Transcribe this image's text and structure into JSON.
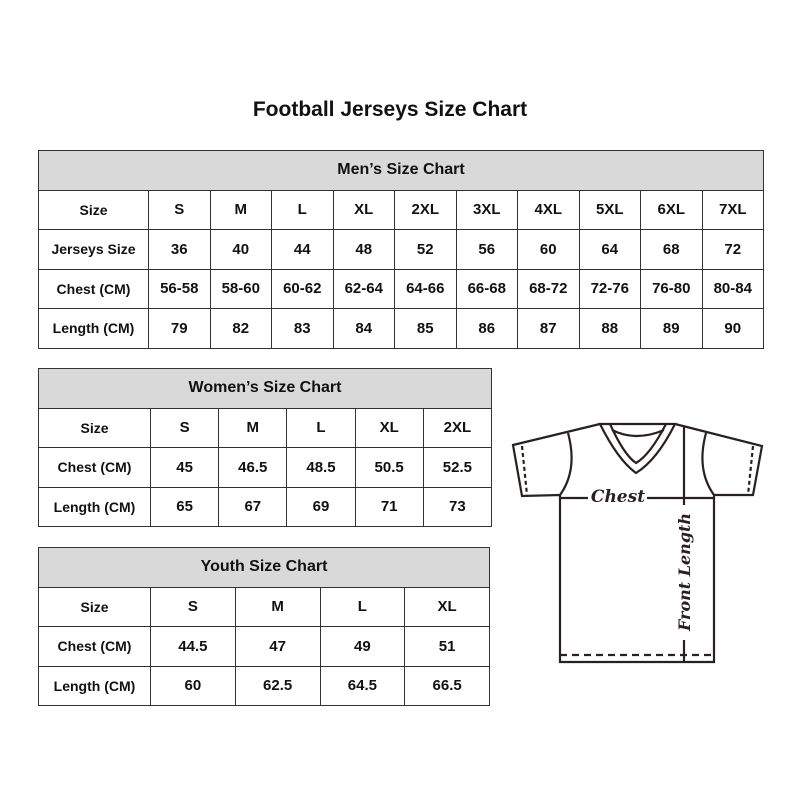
{
  "title": "Football Jerseys Size Chart",
  "men": {
    "caption": "Men’s Size Chart",
    "rows": [
      {
        "label": "Size",
        "values": [
          "S",
          "M",
          "L",
          "XL",
          "2XL",
          "3XL",
          "4XL",
          "5XL",
          "6XL",
          "7XL"
        ]
      },
      {
        "label": "Jerseys Size",
        "values": [
          "36",
          "40",
          "44",
          "48",
          "52",
          "56",
          "60",
          "64",
          "68",
          "72"
        ]
      },
      {
        "label": "Chest (CM)",
        "values": [
          "56-58",
          "58-60",
          "60-62",
          "62-64",
          "64-66",
          "66-68",
          "68-72",
          "72-76",
          "76-80",
          "80-84"
        ]
      },
      {
        "label": "Length (CM)",
        "values": [
          "79",
          "82",
          "83",
          "84",
          "85",
          "86",
          "87",
          "88",
          "89",
          "90"
        ]
      }
    ]
  },
  "women": {
    "caption": "Women’s Size Chart",
    "rows": [
      {
        "label": "Size",
        "values": [
          "S",
          "M",
          "L",
          "XL",
          "2XL"
        ]
      },
      {
        "label": "Chest (CM)",
        "values": [
          "45",
          "46.5",
          "48.5",
          "50.5",
          "52.5"
        ]
      },
      {
        "label": "Length (CM)",
        "values": [
          "65",
          "67",
          "69",
          "71",
          "73"
        ]
      }
    ]
  },
  "youth": {
    "caption": "Youth Size Chart",
    "rows": [
      {
        "label": "Size",
        "values": [
          "S",
          "M",
          "L",
          "XL"
        ]
      },
      {
        "label": "Chest (CM)",
        "values": [
          "44.5",
          "47",
          "49",
          "51"
        ]
      },
      {
        "label": "Length (CM)",
        "values": [
          "60",
          "62.5",
          "64.5",
          "66.5"
        ]
      }
    ]
  },
  "diagram": {
    "chest_label": "Chest",
    "length_label": "Front Length",
    "header_fill": "#d9d9d9"
  }
}
